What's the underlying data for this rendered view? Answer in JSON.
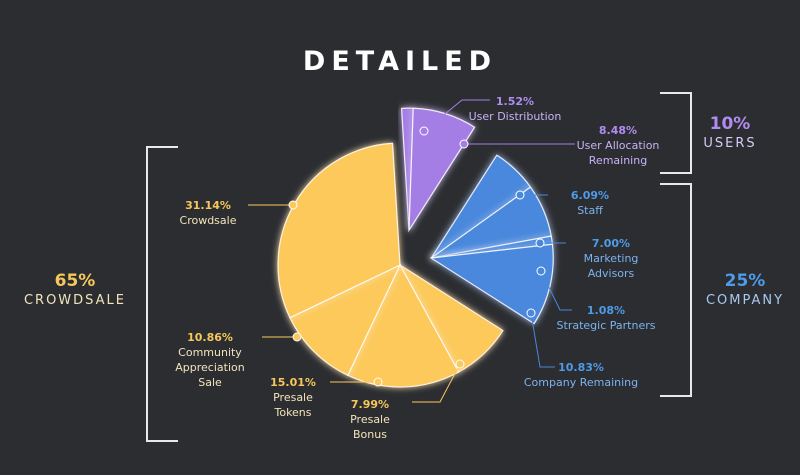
{
  "colors": {
    "background": "#2b2d31",
    "crowdsale": "#fcc95a",
    "company": "#4a88dc",
    "users": "#a57ee5",
    "crowdsale_text": "#f6c85c",
    "company_text": "#4e9be8",
    "users_text": "#b08cf0",
    "bracket": "#e8e8e8"
  },
  "chart_data": {
    "type": "pie",
    "title": "DETAILED",
    "groups": [
      {
        "key": "crowdsale",
        "percent": "65%",
        "name": "CROWDSALE"
      },
      {
        "key": "company",
        "percent": "25%",
        "name": "COMPANY"
      },
      {
        "key": "users",
        "percent": "10%",
        "name": "USERS"
      }
    ],
    "slices": [
      {
        "label": "User Distribution",
        "value": 1.52,
        "display": "1.52%",
        "group": "users"
      },
      {
        "label": "User Allocation\nRemaining",
        "value": 8.48,
        "display": "8.48%",
        "group": "users"
      },
      {
        "label": "Staff",
        "value": 6.09,
        "display": "6.09%",
        "group": "company"
      },
      {
        "label": "Marketing\nAdvisors",
        "value": 7.0,
        "display": "7.00%",
        "group": "company"
      },
      {
        "label": "Strategic Partners",
        "value": 1.08,
        "display": "1.08%",
        "group": "company"
      },
      {
        "label": "Company Remaining",
        "value": 10.83,
        "display": "10.83%",
        "group": "company"
      },
      {
        "label": "Presale\nBonus",
        "value": 7.99,
        "display": "7.99%",
        "group": "crowdsale"
      },
      {
        "label": "Presale\nTokens",
        "value": 15.01,
        "display": "15.01%",
        "group": "crowdsale"
      },
      {
        "label": "Community\nAppreciation\nSale",
        "value": 10.86,
        "display": "10.86%",
        "group": "crowdsale"
      },
      {
        "label": "Crowdsale",
        "value": 31.14,
        "display": "31.14%",
        "group": "crowdsale"
      }
    ]
  }
}
